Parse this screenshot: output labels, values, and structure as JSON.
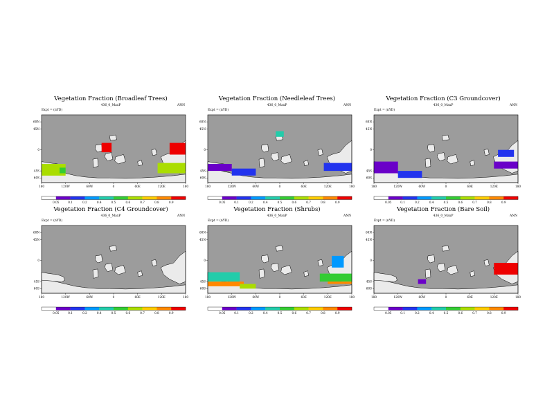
{
  "chart_data": [
    {
      "type": "heatmap",
      "title": "Vegetation Fraction (Broadleaf Trees)",
      "subtitle": "436_0_MaxP",
      "left_label": "Expt = (nYD)",
      "right_label": "ANN",
      "x_ticks": [
        "180",
        "120W",
        "60W",
        "0",
        "60E",
        "120E",
        "180"
      ],
      "y_ticks": [
        "60N",
        "45N",
        "0",
        "45S",
        "60S"
      ],
      "colorbar_ticks": [
        "0.05",
        "0.1",
        "0.2",
        "0.4",
        "0.5",
        "0.6",
        "0.7",
        "0.8",
        "0.9"
      ],
      "features": [
        {
          "lon": [
            -180,
            -120
          ],
          "lat": [
            -55,
            -30
          ],
          "value": 0.6
        },
        {
          "lon": [
            -135,
            -120
          ],
          "lat": [
            -50,
            -38
          ],
          "value": 0.45
        },
        {
          "lon": [
            -30,
            -5
          ],
          "lat": [
            -5,
            15
          ],
          "value": 0.95
        },
        {
          "lon": [
            140,
            180
          ],
          "lat": [
            -10,
            15
          ],
          "value": 0.95
        },
        {
          "lon": [
            110,
            180
          ],
          "lat": [
            -50,
            -28
          ],
          "value": 0.55
        }
      ]
    },
    {
      "type": "heatmap",
      "title": "Vegetation Fraction (Needleleaf Trees)",
      "subtitle": "436_0_MaxP",
      "left_label": "Expt = (nYD)",
      "right_label": "ANN",
      "x_ticks": [
        "180",
        "120W",
        "60W",
        "0",
        "60E",
        "120E",
        "180"
      ],
      "y_ticks": [
        "60N",
        "45N",
        "0",
        "45S",
        "60S"
      ],
      "colorbar_ticks": [
        "0.05",
        "0.1",
        "0.2",
        "0.4",
        "0.5",
        "0.6",
        "0.7",
        "0.8",
        "0.9"
      ],
      "features": [
        {
          "lon": [
            -180,
            -120
          ],
          "lat": [
            -45,
            -30
          ],
          "value": 0.1
        },
        {
          "lon": [
            -120,
            -60
          ],
          "lat": [
            -55,
            -40
          ],
          "value": 0.2
        },
        {
          "lon": [
            110,
            180
          ],
          "lat": [
            -45,
            -28
          ],
          "value": 0.15
        },
        {
          "lon": [
            -10,
            10
          ],
          "lat": [
            28,
            40
          ],
          "value": 0.4
        }
      ]
    },
    {
      "type": "heatmap",
      "title": "Vegetation Fraction (C3 Groundcover)",
      "subtitle": "436_0_MaxP",
      "left_label": "Expt = (nYD)",
      "right_label": "ANN",
      "x_ticks": [
        "180",
        "120W",
        "60W",
        "0",
        "60E",
        "120E",
        "180"
      ],
      "y_ticks": [
        "60N",
        "45N",
        "0",
        "45S",
        "60S"
      ],
      "colorbar_ticks": [
        "0.05",
        "0.1",
        "0.2",
        "0.4",
        "0.5",
        "0.6",
        "0.7",
        "0.8",
        "0.9"
      ],
      "features": [
        {
          "lon": [
            -180,
            -120
          ],
          "lat": [
            -50,
            -25
          ],
          "value": 0.1
        },
        {
          "lon": [
            -120,
            -60
          ],
          "lat": [
            -60,
            -45
          ],
          "value": 0.15
        },
        {
          "lon": [
            120,
            180
          ],
          "lat": [
            -40,
            -25
          ],
          "value": 0.1
        },
        {
          "lon": [
            130,
            170
          ],
          "lat": [
            -15,
            0
          ],
          "value": 0.2
        }
      ]
    },
    {
      "type": "heatmap",
      "title": "Vegetation Fraction (C4 Groundcover)",
      "subtitle": "436_0_MaxP",
      "left_label": "Expt = (nYD)",
      "right_label": "ANN",
      "x_ticks": [
        "180",
        "120W",
        "60W",
        "0",
        "60E",
        "120E",
        "180"
      ],
      "y_ticks": [
        "60N",
        "45N",
        "0",
        "45S",
        "60S"
      ],
      "colorbar_ticks": [
        "0.05",
        "0.1",
        "0.2",
        "0.4",
        "0.5",
        "0.6",
        "0.7",
        "0.8",
        "0.9"
      ],
      "features": []
    },
    {
      "type": "heatmap",
      "title": "Vegetation Fraction (Shrubs)",
      "subtitle": "436_0_MaxP",
      "left_label": "Expt = (nYD)",
      "right_label": "ANN",
      "x_ticks": [
        "180",
        "120W",
        "60W",
        "0",
        "60E",
        "120E",
        "180"
      ],
      "y_ticks": [
        "60N",
        "45N",
        "0",
        "45S",
        "60S"
      ],
      "colorbar_ticks": [
        "0.05",
        "0.1",
        "0.2",
        "0.4",
        "0.5",
        "0.6",
        "0.7",
        "0.8",
        "0.9"
      ],
      "features": [
        {
          "lon": [
            -180,
            -100
          ],
          "lat": [
            -45,
            -25
          ],
          "value": 0.4
        },
        {
          "lon": [
            -180,
            -90
          ],
          "lat": [
            -55,
            -45
          ],
          "value": 0.8
        },
        {
          "lon": [
            -100,
            -60
          ],
          "lat": [
            -60,
            -50
          ],
          "value": 0.6
        },
        {
          "lon": [
            100,
            180
          ],
          "lat": [
            -45,
            -28
          ],
          "value": 0.5
        },
        {
          "lon": [
            120,
            180
          ],
          "lat": [
            -50,
            -45
          ],
          "value": 0.8
        },
        {
          "lon": [
            130,
            160
          ],
          "lat": [
            -15,
            10
          ],
          "value": 0.3
        }
      ]
    },
    {
      "type": "heatmap",
      "title": "Vegetation Fraction (Bare Soil)",
      "subtitle": "436_0_MaxP",
      "left_label": "Expt = (nYD)",
      "right_label": "ANN",
      "x_ticks": [
        "180",
        "120W",
        "60W",
        "0",
        "60E",
        "120E",
        "180"
      ],
      "y_ticks": [
        "60N",
        "45N",
        "0",
        "45S",
        "60S"
      ],
      "colorbar_ticks": [
        "0.05",
        "0.1",
        "0.2",
        "0.4",
        "0.5",
        "0.6",
        "0.7",
        "0.8",
        "0.9"
      ],
      "features": [
        {
          "lon": [
            120,
            180
          ],
          "lat": [
            -30,
            -5
          ],
          "value": 0.95
        },
        {
          "lon": [
            -70,
            -50
          ],
          "lat": [
            -50,
            -40
          ],
          "value": 0.1
        }
      ]
    }
  ],
  "colors": {
    "ocean": "#9c9c9c",
    "land": "#ebebeb",
    "coast": "#000000",
    "scale": [
      "#ffffff",
      "#6a00c8",
      "#2233ee",
      "#0099ff",
      "#22ccaa",
      "#33cc33",
      "#aadd00",
      "#ffcc00",
      "#ff8800",
      "#ee0000"
    ]
  }
}
